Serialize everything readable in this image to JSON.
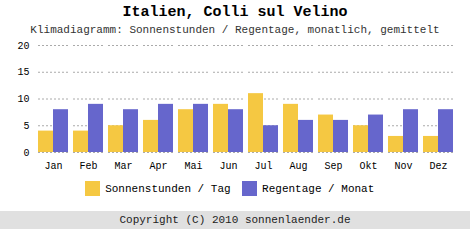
{
  "chart_data": {
    "type": "bar",
    "title": "Italien, Colli sul Velino",
    "subtitle": "Klimadiagramm: Sonnenstunden / Regentage, monatlich, gemittelt",
    "caption": "Copyright (C) 2010 sonnenlaender.de",
    "categories": [
      "Jan",
      "Feb",
      "Mar",
      "Apr",
      "Mai",
      "Jun",
      "Jul",
      "Aug",
      "Sep",
      "Okt",
      "Nov",
      "Dez"
    ],
    "series": [
      {
        "name": "Sonnenstunden / Tag",
        "color": "#F5C842",
        "values": [
          4,
          4,
          5,
          6,
          8,
          9,
          11,
          9,
          7,
          5,
          3,
          3
        ]
      },
      {
        "name": "Regentage / Monat",
        "color": "#6666CC",
        "values": [
          8,
          9,
          8,
          9,
          9,
          8,
          5,
          6,
          6,
          7,
          8,
          8
        ]
      }
    ],
    "ylim": [
      0,
      20
    ],
    "yticks": [
      0,
      5,
      10,
      15,
      20
    ],
    "grid": true,
    "legend": "bottom"
  }
}
